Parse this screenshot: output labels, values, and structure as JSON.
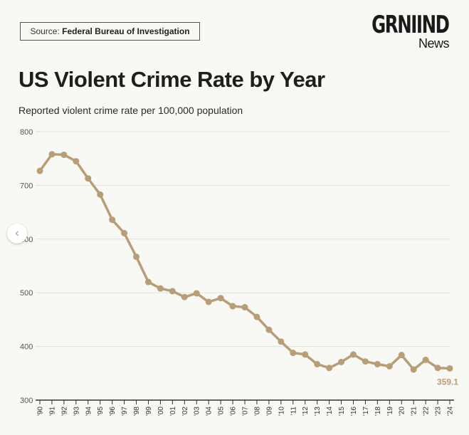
{
  "source": {
    "label": "Source:",
    "value": "Federal Bureau of Investigation"
  },
  "logo": {
    "top": "GRNIIND",
    "bottom": "News"
  },
  "nav": {
    "prev_icon": "‹"
  },
  "chart_data": {
    "type": "line",
    "title": "US Violent Crime Rate by Year",
    "subtitle": "Reported violent crime rate per 100,000 population",
    "xlabel": "",
    "ylabel": "",
    "ylim": [
      300,
      800
    ],
    "yticks": [
      "800",
      "700",
      "600",
      "500",
      "400",
      "300"
    ],
    "ytick_values": [
      800,
      700,
      600,
      500,
      400,
      300
    ],
    "grid": true,
    "color": "#b89e76",
    "categories": [
      "'90",
      "'91",
      "'92",
      "'93",
      "'94",
      "'95",
      "'96",
      "'97",
      "'98",
      "'99",
      "'00",
      "'01",
      "'02",
      "'03",
      "'04",
      "'05",
      "'06",
      "'07",
      "'08",
      "'09",
      "'10",
      "'11",
      "'12",
      "'13",
      "'14",
      "'15",
      "'16",
      "'17",
      "'18",
      "'19",
      "'20",
      "'21",
      "'22",
      "'23",
      "'24"
    ],
    "values": [
      727,
      758,
      757,
      745,
      713,
      683,
      636,
      611,
      567,
      520,
      508,
      503,
      492,
      499,
      483,
      490,
      475,
      473,
      455,
      431,
      409,
      388,
      385,
      367,
      360,
      371,
      385,
      372,
      367,
      363,
      384,
      357,
      375,
      360,
      359.1
    ],
    "end_label": "359.1"
  }
}
